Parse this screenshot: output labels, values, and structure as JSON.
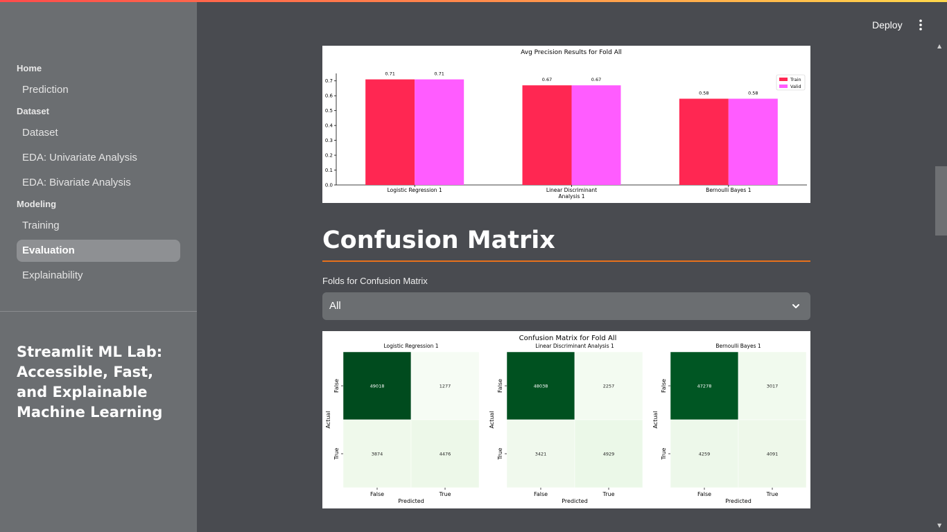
{
  "app": {
    "deploy_label": "Deploy",
    "menu_icon": "kebab-menu-icon",
    "accent_gradient": [
      "#ff4b4b",
      "#ffd84b"
    ]
  },
  "sidebar": {
    "sections": [
      {
        "title": "Home",
        "items": [
          {
            "label": "Prediction",
            "active": false
          }
        ]
      },
      {
        "title": "Dataset",
        "items": [
          {
            "label": "Dataset",
            "active": false
          },
          {
            "label": "EDA: Univariate Analysis",
            "active": false
          },
          {
            "label": "EDA: Bivariate Analysis",
            "active": false
          }
        ]
      },
      {
        "title": "Modeling",
        "items": [
          {
            "label": "Training",
            "active": false
          },
          {
            "label": "Evaluation",
            "active": true
          },
          {
            "label": "Explainability",
            "active": false
          }
        ]
      }
    ],
    "app_title": "Streamlit ML Lab: Accessible, Fast, and Explainable Machine Learning"
  },
  "main": {
    "confusion_header": "Confusion Matrix",
    "folds_label": "Folds for Confusion Matrix",
    "folds_selected": "All"
  },
  "chart_data": [
    {
      "type": "bar",
      "title": "Avg Precision Results for Fold All",
      "categories": [
        "Logistic Regression 1",
        "Linear Discriminant Analysis 1",
        "Bernoulli Bayes 1"
      ],
      "series": [
        {
          "name": "Train",
          "values": [
            0.71,
            0.67,
            0.58
          ],
          "color": "#ff2752"
        },
        {
          "name": "Valid",
          "values": [
            0.71,
            0.67,
            0.58
          ],
          "color": "#ff5cff"
        }
      ],
      "data_labels": [
        "0.71",
        "0.71",
        "0.67",
        "0.67",
        "0.58",
        "0.58"
      ],
      "ylim": [
        0,
        0.75
      ],
      "yticks": [
        "0.0",
        "0.1",
        "0.2",
        "0.3",
        "0.4",
        "0.5",
        "0.6",
        "0.7"
      ],
      "legend": "top-right",
      "grid": false
    },
    {
      "type": "heatmap",
      "title": "Confusion Matrix for Fold All",
      "xlabel": "Predicted",
      "ylabel": "Actual",
      "x_ticks": [
        "False",
        "True"
      ],
      "y_ticks": [
        "False",
        "True"
      ],
      "colormap": "Greens",
      "matrices": [
        {
          "title": "Logistic Regression 1",
          "values": [
            [
              49018,
              1277
            ],
            [
              3874,
              4476
            ]
          ],
          "labels": [
            [
              "49018",
              "1277"
            ],
            [
              "3874",
              "4476"
            ]
          ]
        },
        {
          "title": "Linear Discriminant Analysis 1",
          "values": [
            [
              48038,
              2257
            ],
            [
              3421,
              4929
            ]
          ],
          "labels": [
            [
              "48038",
              "2257"
            ],
            [
              "3421",
              "4929"
            ]
          ]
        },
        {
          "title": "Bernoulli Bayes 1",
          "values": [
            [
              47278,
              3017
            ],
            [
              4259,
              4091
            ]
          ],
          "labels": [
            [
              "47278",
              "3017"
            ],
            [
              "4259",
              "4091"
            ]
          ]
        }
      ]
    }
  ]
}
